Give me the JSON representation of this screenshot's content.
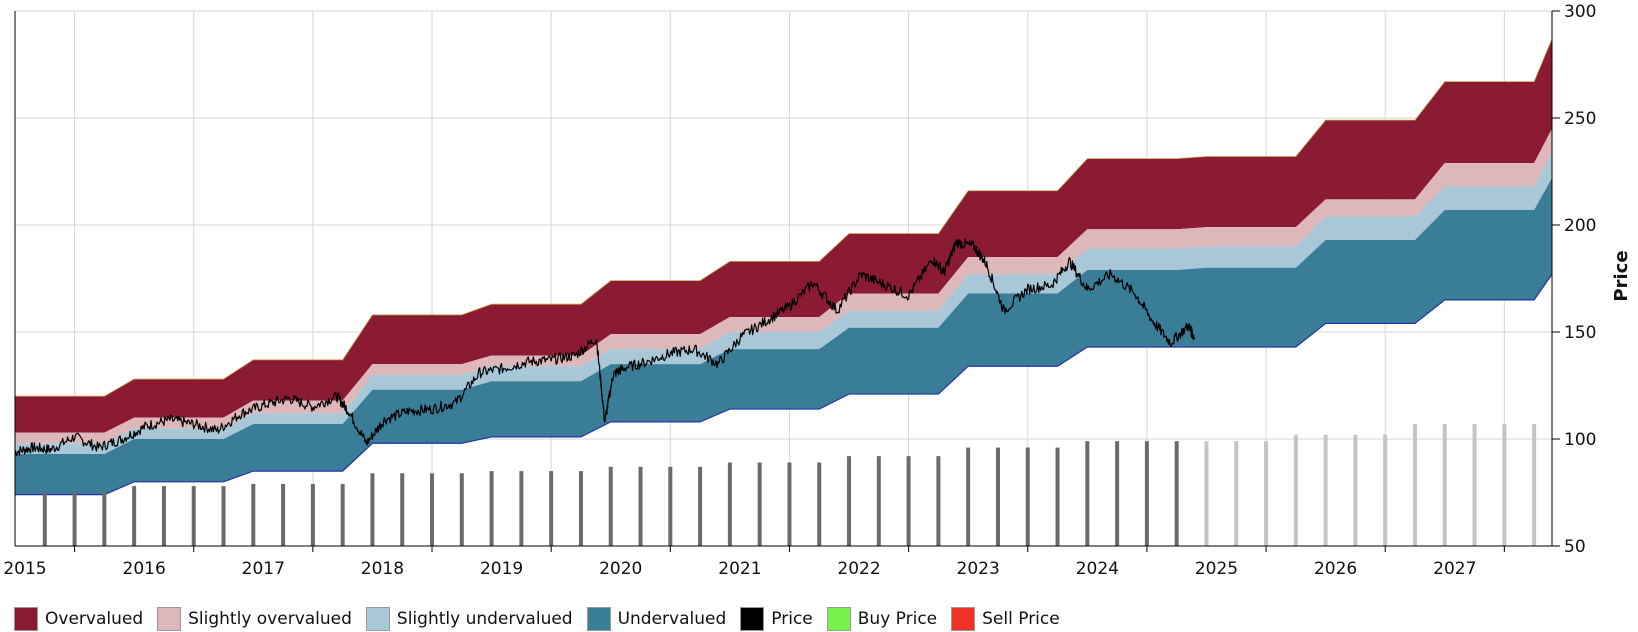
{
  "chart_data": {
    "type": "area",
    "title": "",
    "ylabel": "Price",
    "ylim": [
      50,
      300
    ],
    "yticks": [
      50,
      100,
      150,
      200,
      250,
      300
    ],
    "xlim": [
      2015,
      2027.9
    ],
    "xticks": [
      "2015",
      "2016",
      "2017",
      "2018",
      "2019",
      "2020",
      "2021",
      "2022",
      "2023",
      "2024",
      "2025",
      "2026",
      "2027"
    ],
    "grid": true,
    "legend_position": "bottom",
    "legend": [
      {
        "key": "overvalued",
        "label": "Overvalued",
        "color": "#8B1A33"
      },
      {
        "key": "slightly_overvalued",
        "label": "Slightly overvalued",
        "color": "#DDB7BA"
      },
      {
        "key": "slightly_undervalued",
        "label": "Slightly undervalued",
        "color": "#A8C7D7"
      },
      {
        "key": "undervalued",
        "label": "Undervalued",
        "color": "#3A7D96"
      },
      {
        "key": "price",
        "label": "Price",
        "color": "#000000"
      },
      {
        "key": "buy_price",
        "label": "Buy Price",
        "color": "#77F24A"
      },
      {
        "key": "sell_price",
        "label": "Sell Price",
        "color": "#EE3226"
      }
    ],
    "bands_steps": {
      "x": [
        2015.0,
        2015.75,
        2016.0,
        2016.75,
        2017.0,
        2017.75,
        2018.0,
        2018.75,
        2019.0,
        2019.75,
        2020.0,
        2020.75,
        2021.0,
        2021.75,
        2022.0,
        2022.75,
        2023.0,
        2023.75,
        2024.0,
        2024.75,
        2025.0,
        2025.75,
        2026.0,
        2026.75,
        2027.0,
        2027.75,
        2027.9
      ],
      "undervalued_low": [
        74,
        74,
        80,
        80,
        85,
        85,
        98,
        98,
        101,
        101,
        108,
        108,
        114,
        114,
        121,
        121,
        134,
        134,
        143,
        143,
        143,
        143,
        154,
        154,
        165,
        165,
        177
      ],
      "undervalued_high": [
        93,
        93,
        100,
        100,
        107,
        107,
        123,
        123,
        127,
        127,
        135,
        135,
        142,
        142,
        152,
        152,
        168,
        168,
        179,
        179,
        180,
        180,
        193,
        193,
        207,
        207,
        222
      ],
      "slightly_under_high": [
        98,
        98,
        105,
        105,
        112,
        112,
        130,
        130,
        134,
        134,
        142,
        142,
        150,
        150,
        160,
        160,
        177,
        177,
        189,
        189,
        190,
        190,
        204,
        204,
        218,
        218,
        234
      ],
      "slightly_over_high": [
        103,
        103,
        110,
        110,
        118,
        118,
        135,
        135,
        139,
        139,
        149,
        149,
        157,
        157,
        168,
        168,
        185,
        185,
        198,
        198,
        199,
        199,
        212,
        212,
        229,
        229,
        245
      ],
      "overvalued_high": [
        120,
        120,
        128,
        128,
        137,
        137,
        158,
        158,
        163,
        163,
        174,
        174,
        183,
        183,
        196,
        196,
        216,
        216,
        231,
        231,
        232,
        232,
        249,
        249,
        267,
        267,
        287
      ]
    },
    "price_anchors": {
      "x": [
        2015.0,
        2015.15,
        2015.3,
        2015.5,
        2015.7,
        2015.9,
        2016.1,
        2016.3,
        2016.5,
        2016.7,
        2016.9,
        2017.1,
        2017.3,
        2017.5,
        2017.7,
        2017.8,
        2017.95,
        2018.1,
        2018.3,
        2018.5,
        2018.7,
        2018.9,
        2019.1,
        2019.3,
        2019.5,
        2019.7,
        2019.88,
        2019.95,
        2020.02,
        2020.1,
        2020.3,
        2020.5,
        2020.7,
        2020.9,
        2021.1,
        2021.3,
        2021.5,
        2021.7,
        2021.9,
        2022.1,
        2022.3,
        2022.5,
        2022.7,
        2022.8,
        2022.9,
        2023.05,
        2023.15,
        2023.3,
        2023.5,
        2023.7,
        2023.85,
        2024.0,
        2024.2,
        2024.4,
        2024.55,
        2024.7,
        2024.85,
        2024.9
      ],
      "y": [
        94,
        96,
        95,
        101,
        96,
        100,
        106,
        109,
        107,
        104,
        112,
        116,
        119,
        115,
        120,
        113,
        98,
        109,
        113,
        114,
        117,
        131,
        133,
        136,
        137,
        139,
        147,
        108,
        130,
        133,
        136,
        140,
        142,
        135,
        148,
        155,
        162,
        173,
        160,
        177,
        172,
        167,
        184,
        178,
        192,
        190,
        182,
        160,
        170,
        172,
        183,
        170,
        177,
        168,
        155,
        145,
        153,
        147
      ]
    },
    "fair_value_bars": {
      "x": [
        2015.25,
        2015.5,
        2015.75,
        2016.0,
        2016.25,
        2016.5,
        2016.75,
        2017.0,
        2017.25,
        2017.5,
        2017.75,
        2018.0,
        2018.25,
        2018.5,
        2018.75,
        2019.0,
        2019.25,
        2019.5,
        2019.75,
        2020.0,
        2020.25,
        2020.5,
        2020.75,
        2021.0,
        2021.25,
        2021.5,
        2021.75,
        2022.0,
        2022.25,
        2022.5,
        2022.75,
        2023.0,
        2023.25,
        2023.5,
        2023.75,
        2024.0,
        2024.25,
        2024.5,
        2024.75,
        2025.0,
        2025.25,
        2025.5,
        2025.75,
        2026.0,
        2026.25,
        2026.5,
        2026.75,
        2027.0,
        2027.25,
        2027.5,
        2027.75
      ],
      "values": [
        75,
        75,
        75,
        78,
        78,
        78,
        78,
        79,
        79,
        79,
        79,
        84,
        84,
        84,
        84,
        85,
        85,
        85,
        85,
        87,
        87,
        87,
        87,
        89,
        89,
        89,
        89,
        92,
        92,
        92,
        92,
        96,
        96,
        96,
        96,
        99,
        99,
        99,
        99,
        99,
        99,
        99,
        102,
        102,
        102,
        102,
        107,
        107,
        107,
        107,
        107
      ],
      "forecast_from": 2024.95,
      "actual_color": "#6b6b6b",
      "forecast_color": "#c4c4c4"
    }
  }
}
